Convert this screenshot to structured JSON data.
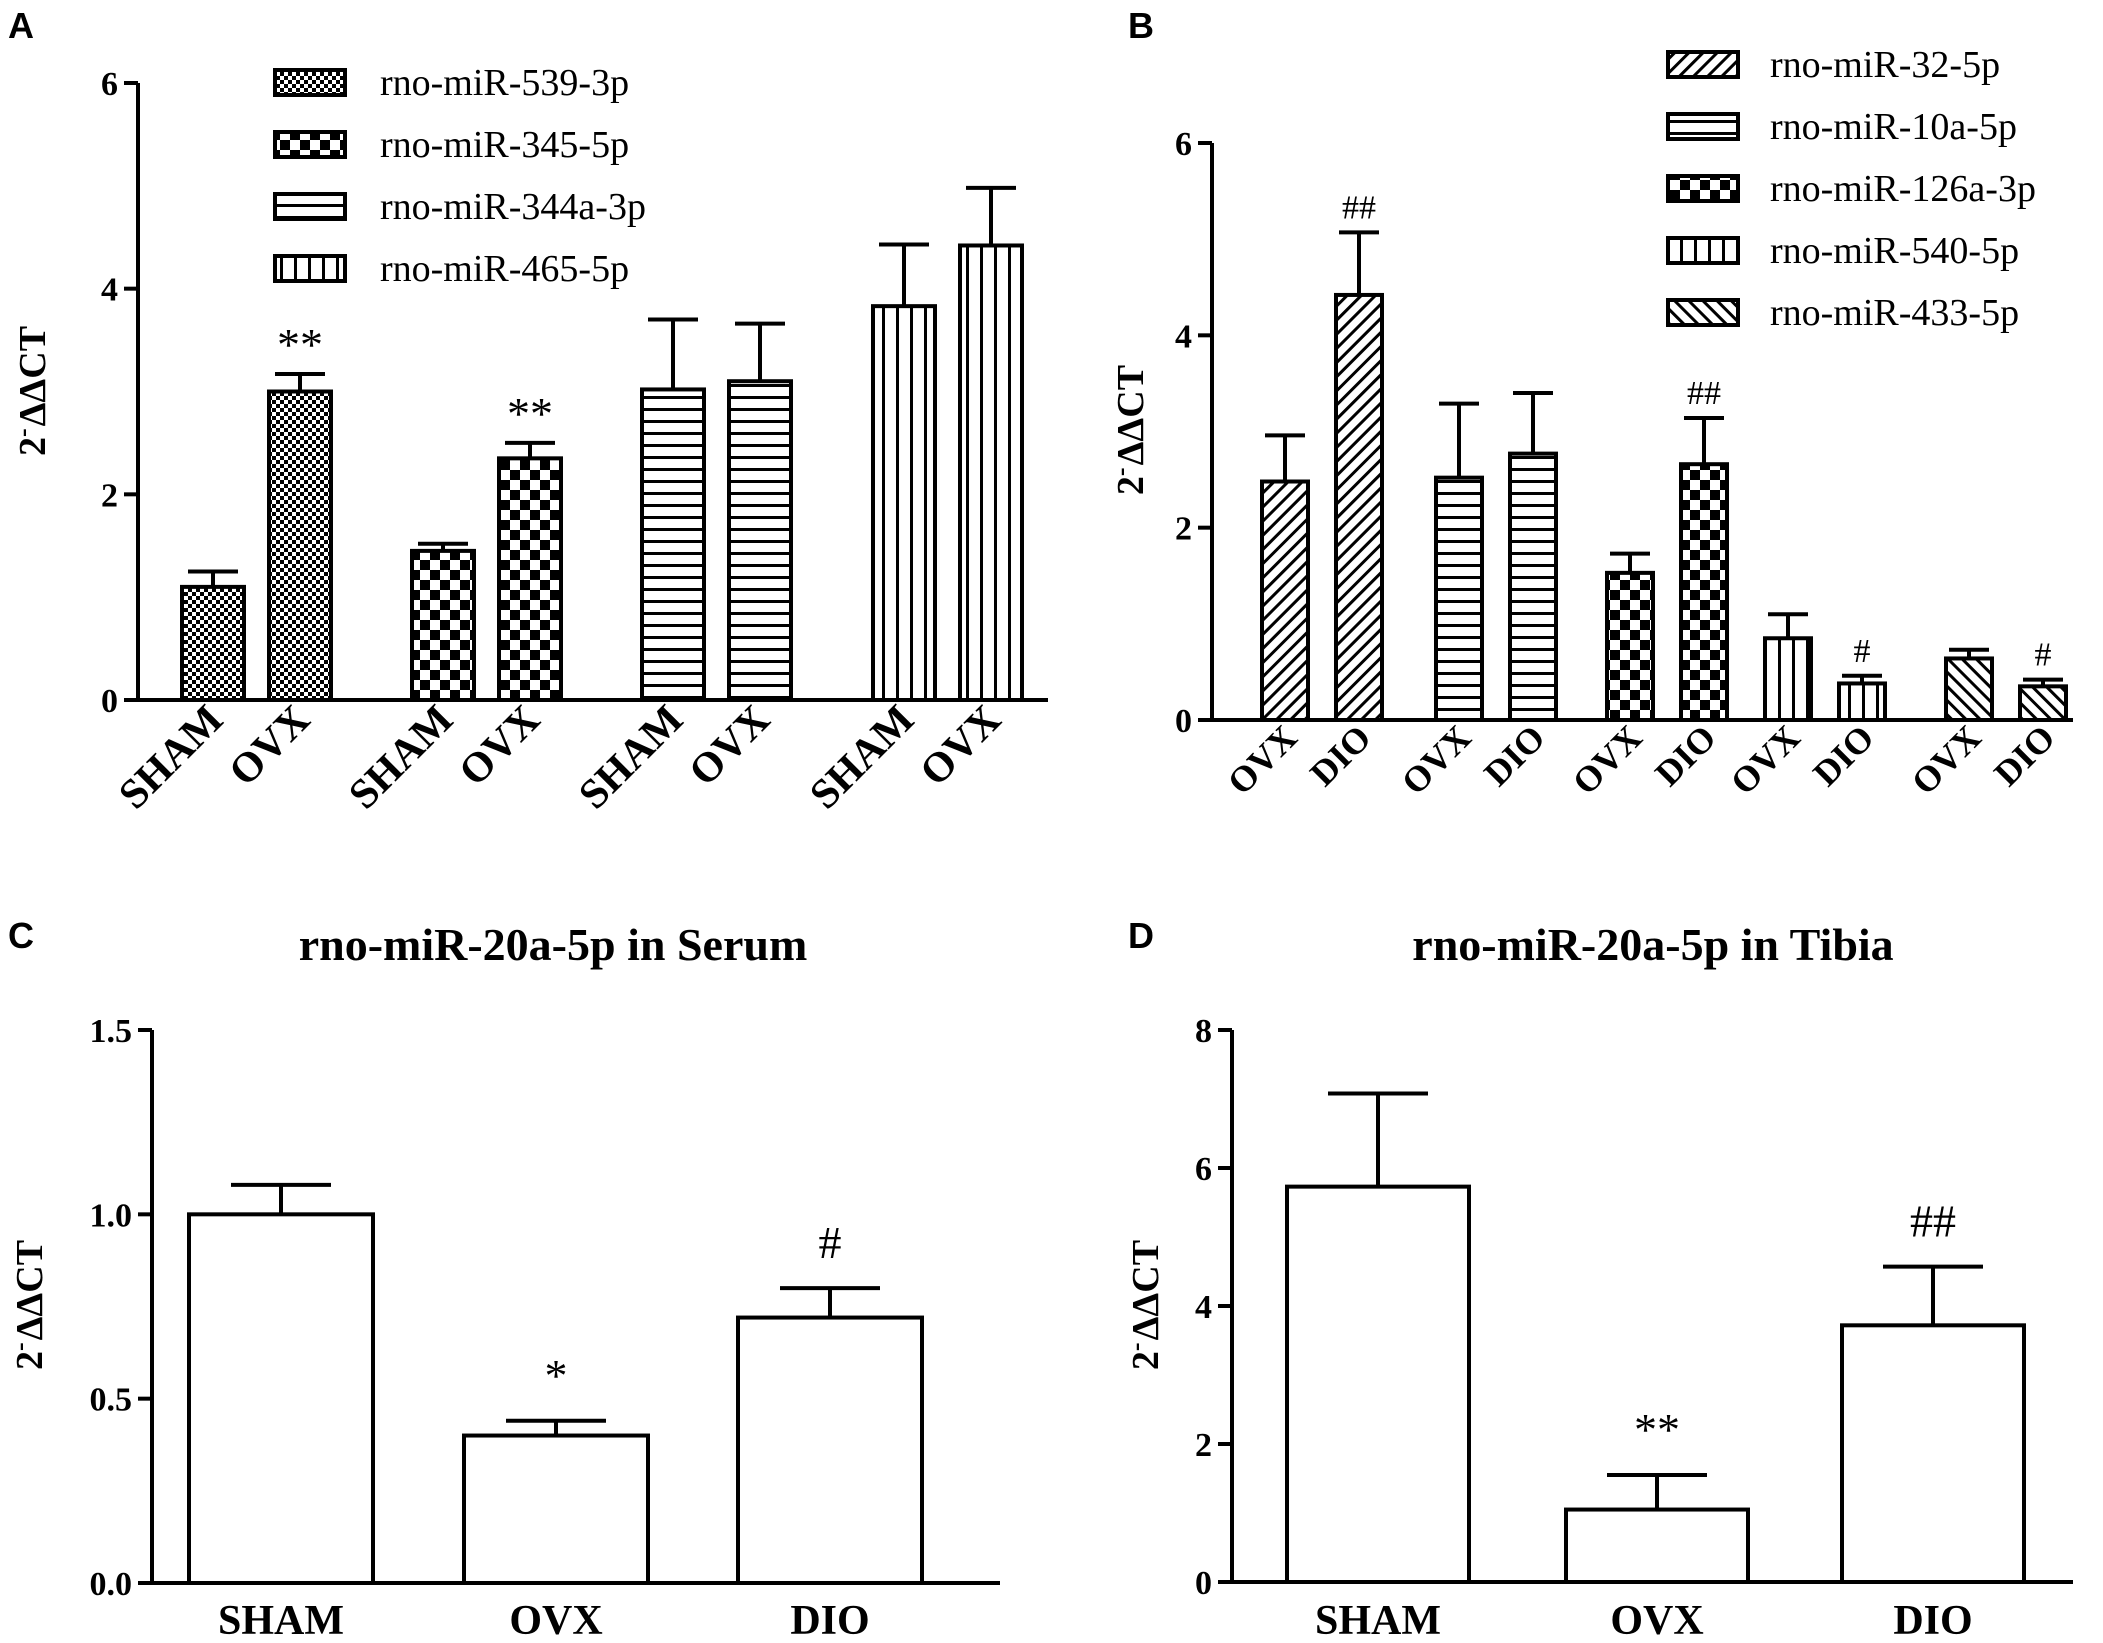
{
  "colors": {
    "stroke": "#000000",
    "fill": "#ffffff"
  },
  "chart_data": [
    {
      "panel": "A",
      "type": "bar",
      "ylabel": "2-ΔΔCT",
      "ylim": [
        0,
        6
      ],
      "yticks": [
        0,
        2,
        4,
        6
      ],
      "series": [
        {
          "name": "rno-miR-539-3p",
          "pattern": "dots",
          "categories": [
            "SHAM",
            "OVX"
          ],
          "values": [
            1.1,
            3.0
          ],
          "errors": [
            0.15,
            0.17
          ],
          "annotations": [
            "",
            "**"
          ]
        },
        {
          "name": "rno-miR-345-5p",
          "pattern": "checker",
          "categories": [
            "SHAM",
            "OVX"
          ],
          "values": [
            1.45,
            2.35
          ],
          "errors": [
            0.07,
            0.15
          ],
          "annotations": [
            "",
            "**"
          ]
        },
        {
          "name": "rno-miR-344a-3p",
          "pattern": "hstripes",
          "categories": [
            "SHAM",
            "OVX"
          ],
          "values": [
            3.02,
            3.1
          ],
          "errors": [
            0.68,
            0.56
          ],
          "annotations": [
            "",
            ""
          ]
        },
        {
          "name": "rno-miR-465-5p",
          "pattern": "vstripes",
          "categories": [
            "SHAM",
            "OVX"
          ],
          "values": [
            3.83,
            4.42
          ],
          "errors": [
            0.6,
            0.56
          ],
          "annotations": [
            "",
            ""
          ]
        }
      ]
    },
    {
      "panel": "B",
      "type": "bar",
      "ylabel": "2-ΔΔCT",
      "ylim": [
        0,
        6
      ],
      "yticks": [
        0,
        2,
        4,
        6
      ],
      "series": [
        {
          "name": "rno-miR-32-5p",
          "pattern": "diagdown",
          "categories": [
            "OVX",
            "DIO"
          ],
          "values": [
            2.48,
            4.42
          ],
          "errors": [
            0.48,
            0.65
          ],
          "annotations": [
            "",
            "##"
          ]
        },
        {
          "name": "rno-miR-10a-5p",
          "pattern": "hstripes",
          "categories": [
            "OVX",
            "DIO"
          ],
          "values": [
            2.52,
            2.77
          ],
          "errors": [
            0.77,
            0.63
          ],
          "annotations": [
            "",
            ""
          ]
        },
        {
          "name": "rno-miR-126a-3p",
          "pattern": "checker",
          "categories": [
            "OVX",
            "DIO"
          ],
          "values": [
            1.53,
            2.66
          ],
          "errors": [
            0.2,
            0.48
          ],
          "annotations": [
            "",
            "##"
          ]
        },
        {
          "name": "rno-miR-540-5p",
          "pattern": "vstripes",
          "categories": [
            "OVX",
            "DIO"
          ],
          "values": [
            0.85,
            0.38
          ],
          "errors": [
            0.25,
            0.08
          ],
          "annotations": [
            "",
            "#"
          ]
        },
        {
          "name": "rno-miR-433-5p",
          "pattern": "diagup",
          "categories": [
            "OVX",
            "DIO"
          ],
          "values": [
            0.64,
            0.35
          ],
          "errors": [
            0.09,
            0.07
          ],
          "annotations": [
            "",
            "#"
          ]
        }
      ]
    },
    {
      "panel": "C",
      "type": "bar",
      "title": "rno-miR-20a-5p in Serum",
      "ylabel": "2-ΔΔCT",
      "ylim": [
        0,
        1.5
      ],
      "yticks": [
        "0.0",
        "0.5",
        "1.0",
        "1.5"
      ],
      "categories": [
        "SHAM",
        "OVX",
        "DIO"
      ],
      "values": [
        1.0,
        0.4,
        0.72
      ],
      "errors": [
        0.08,
        0.04,
        0.08
      ],
      "annotations": [
        "",
        "*",
        "#"
      ]
    },
    {
      "panel": "D",
      "type": "bar",
      "title": "rno-miR-20a-5p in Tibia",
      "ylabel": "2-ΔΔCT",
      "ylim": [
        0,
        8
      ],
      "yticks": [
        0,
        2,
        4,
        6,
        8
      ],
      "categories": [
        "SHAM",
        "OVX",
        "DIO"
      ],
      "values": [
        5.73,
        1.05,
        3.72
      ],
      "errors": [
        1.35,
        0.5,
        0.85
      ],
      "annotations": [
        "",
        "**",
        "##"
      ]
    }
  ]
}
